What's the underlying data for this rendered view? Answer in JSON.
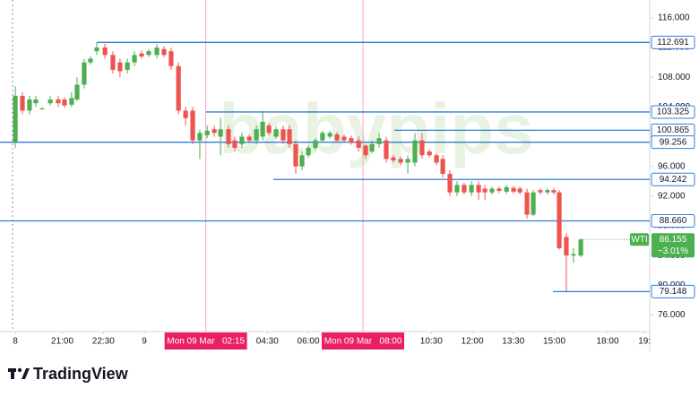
{
  "chart_data": {
    "type": "candlestick",
    "watermark": "babypips",
    "brand": "TradingView",
    "up_color": "#4caf50",
    "down_color": "#ef5350",
    "level_color": "#2f7ed8",
    "x": [
      -4.72,
      -4.46,
      -4.2,
      -3.97,
      -3.74,
      -3.44,
      -3.15,
      -2.92,
      -2.66,
      -2.46,
      -2.2,
      -1.97,
      -1.74,
      -1.44,
      -1.15,
      -0.89,
      -0.62,
      -0.36,
      -0.1,
      0.16,
      0.46,
      0.72,
      0.98,
      1.25,
      1.51,
      1.77,
      2.03,
      2.3,
      2.56,
      2.79,
      3.08,
      3.31,
      3.57,
      3.84,
      4.1,
      4.33,
      4.56,
      4.82,
      5.08,
      5.31,
      5.54,
      5.77,
      6.0,
      6.26,
      6.52,
      6.79,
      7.05,
      7.31,
      7.57,
      7.84,
      8.1,
      8.33,
      8.59,
      8.85,
      9.11,
      9.38,
      9.64,
      9.9,
      10.16,
      10.43,
      10.69,
      10.92,
      11.18,
      11.44,
      11.7,
      11.97,
      12.23,
      12.46,
      12.72,
      12.98,
      13.25,
      13.51,
      13.74,
      14.0,
      14.23,
      14.49,
      14.75,
      14.98,
      15.18,
      15.44,
      15.7,
      15.97
    ],
    "open": [
      99.3,
      105.5,
      103.5,
      104.5,
      103.8,
      104.5,
      105,
      105,
      104.3,
      105,
      107,
      110,
      111.5,
      112,
      111,
      110,
      109,
      110,
      111.2,
      111,
      111,
      111.8,
      111.5,
      109.5,
      103.5,
      103.5,
      99.5,
      100.2,
      101,
      100,
      101,
      99.5,
      99,
      100,
      99.5,
      100,
      101.5,
      100,
      101,
      101,
      99,
      96,
      97.5,
      98.5,
      99.5,
      100,
      100.3,
      100,
      99.8,
      99.5,
      98.8,
      98,
      99,
      99.5,
      97.2,
      97,
      96.5,
      96.5,
      99.5,
      98,
      97.5,
      97,
      95,
      92.5,
      93.5,
      92.5,
      93.5,
      93,
      92.5,
      93,
      92.6,
      93.1,
      93,
      92.5,
      89.5,
      92.8,
      92.5,
      92.8,
      92.5,
      86.5,
      84,
      84
    ],
    "high": [
      106.8,
      106,
      105.5,
      105.5,
      104,
      105.5,
      105.5,
      105.3,
      106,
      108,
      110.5,
      110.8,
      112.7,
      112.5,
      111.5,
      110.5,
      110.5,
      111.5,
      111.6,
      111.8,
      112.5,
      112.2,
      112,
      110,
      104,
      104,
      101,
      101.5,
      101.5,
      102.5,
      101.5,
      100,
      100.5,
      100.3,
      101.5,
      103.5,
      101.8,
      101.3,
      101.5,
      101.5,
      99.5,
      98,
      98.8,
      99.8,
      100.8,
      100.8,
      100.6,
      100.3,
      100.1,
      100,
      99,
      99.5,
      100.5,
      100,
      97.5,
      97.3,
      97.5,
      100.5,
      100.5,
      98.3,
      97.8,
      97.5,
      95.5,
      94,
      93.8,
      94,
      94,
      93.5,
      93.3,
      93.3,
      93.5,
      93.4,
      93.3,
      93,
      92.8,
      93.1,
      93.1,
      93.1,
      92.8,
      87,
      85,
      86.3
    ],
    "low": [
      98.5,
      103,
      103,
      104,
      103.6,
      104.2,
      104,
      103.9,
      104,
      104.8,
      106.5,
      109.7,
      111,
      110.5,
      108.5,
      108,
      108.5,
      109.5,
      110.5,
      110.7,
      110.5,
      110.7,
      109,
      103,
      101.5,
      99,
      97,
      99.8,
      100,
      97.5,
      98.5,
      98,
      98.5,
      99.2,
      99,
      99.5,
      100.2,
      99.7,
      99,
      98.5,
      95,
      95.5,
      97.2,
      98.2,
      99.2,
      99.7,
      99.2,
      99.2,
      98.9,
      98,
      97,
      97.8,
      98.5,
      96.5,
      96.5,
      96.2,
      95,
      96,
      97,
      97.2,
      96.2,
      94.5,
      92,
      92,
      92.2,
      92,
      91.5,
      91.5,
      92.2,
      92.4,
      92.3,
      92.3,
      92.2,
      89,
      89.3,
      92.2,
      92.2,
      92.2,
      84.8,
      79.148,
      83,
      83.8
    ],
    "close": [
      105.5,
      103.5,
      105,
      105,
      103.8,
      105,
      104.5,
      104.2,
      105.2,
      107,
      110,
      110.5,
      112,
      111,
      109,
      108.8,
      110,
      111,
      110.8,
      111.5,
      112,
      111,
      109.5,
      103.5,
      102.5,
      99.5,
      100.5,
      100.8,
      100.5,
      101,
      99,
      98.5,
      100,
      99.5,
      101,
      102,
      100.5,
      101,
      99.5,
      99,
      96,
      97.5,
      98.5,
      99.5,
      100.5,
      100.5,
      99.5,
      99.5,
      99.2,
      98.5,
      97.5,
      99,
      99.8,
      97,
      96.8,
      96.5,
      97,
      99.5,
      97.5,
      97.5,
      96.5,
      95,
      92.5,
      93.5,
      92.5,
      93.5,
      92.5,
      92.5,
      93,
      92.7,
      93.2,
      92.6,
      92.5,
      89.5,
      92.5,
      92.5,
      92.8,
      92.5,
      85,
      84,
      84.2,
      86.155
    ],
    "xlim": [
      -5.28,
      18.49
    ],
    "xticks": [
      {
        "value": -4.72,
        "label": "8"
      },
      {
        "value": -3,
        "label": "21:00"
      },
      {
        "value": -1.5,
        "label": "22:30"
      },
      {
        "value": 0,
        "label": "9"
      },
      {
        "value": 2.25,
        "label": "Mon 09 Mar   02:15",
        "highlight": true
      },
      {
        "value": 4.5,
        "label": "04:30"
      },
      {
        "value": 6,
        "label": "06:00"
      },
      {
        "value": 8,
        "label": "Mon 09 Mar   08:00",
        "highlight": true
      },
      {
        "value": 10.5,
        "label": "10:30"
      },
      {
        "value": 12,
        "label": "12:00"
      },
      {
        "value": 13.5,
        "label": "13:30"
      },
      {
        "value": 15,
        "label": "15:00"
      },
      {
        "value": 16.95,
        "label": "18:00"
      },
      {
        "value": 18.3,
        "label": "19:"
      }
    ],
    "ylim": [
      73.76,
      118.4
    ],
    "yticks": [
      {
        "value": 76,
        "label": "76.000"
      },
      {
        "value": 80,
        "label": "80.000"
      },
      {
        "value": 84,
        "label": "84.000"
      },
      {
        "value": 88,
        "label": "88.000"
      },
      {
        "value": 92,
        "label": "92.000"
      },
      {
        "value": 96,
        "label": "96.000"
      },
      {
        "value": 100,
        "label": "100.000"
      },
      {
        "value": 104,
        "label": "104.000"
      },
      {
        "value": 108,
        "label": "108.000"
      },
      {
        "value": 112,
        "label": "112.000"
      },
      {
        "value": 116,
        "label": "116.000"
      }
    ],
    "levels": [
      {
        "value": 112.691,
        "label": "112.691",
        "start": -1.74
      },
      {
        "value": 103.325,
        "label": "103.325",
        "start": 2.26
      },
      {
        "value": 100.865,
        "label": "100.865",
        "start": 9.15
      },
      {
        "value": 99.256,
        "label": "99.256",
        "start": -5.28
      },
      {
        "value": 94.242,
        "label": "94.242",
        "start": 4.72
      },
      {
        "value": 88.66,
        "label": "88.660",
        "start": -5.28
      },
      {
        "value": 79.148,
        "label": "79.148",
        "start": 14.95
      }
    ],
    "current": {
      "symbol": "WTI",
      "value": 86.155,
      "label": "86.155",
      "change": "−3.01%"
    }
  }
}
